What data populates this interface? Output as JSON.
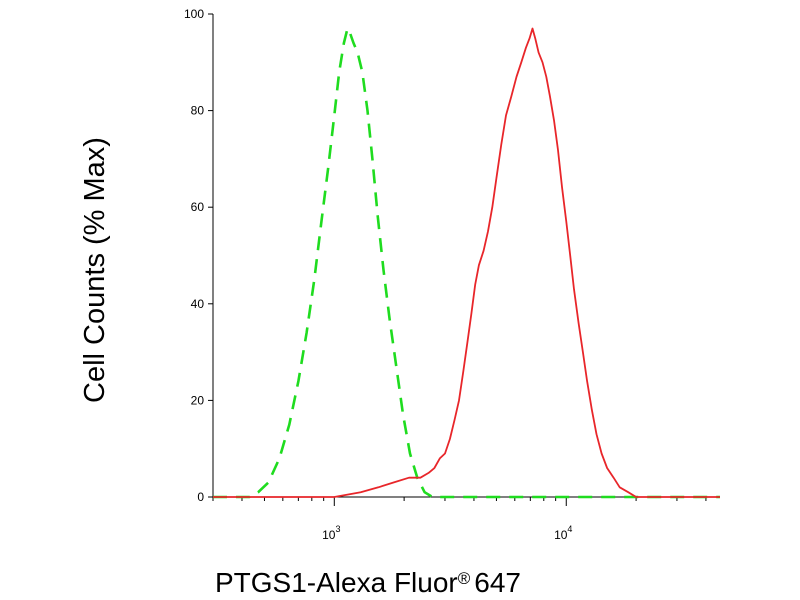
{
  "chart_data": {
    "type": "area",
    "title": "",
    "xlabel": "PTGS1-Alexa Fluor",
    "xlabel_superscript": "®",
    "xlabel_suffix": "647",
    "ylabel": "Cell Counts (% Max)",
    "x_scale": "log",
    "xlim": [
      300,
      46000
    ],
    "ylim": [
      0,
      100
    ],
    "x_ticks": [
      {
        "value": 1000,
        "base": "10",
        "exp": "3"
      },
      {
        "value": 10000,
        "base": "10",
        "exp": "4"
      }
    ],
    "y_ticks": [
      0,
      20,
      40,
      60,
      80,
      100
    ],
    "grid": false,
    "legend": "none",
    "series": [
      {
        "color": "#1fdc1f",
        "line_style": "dashed",
        "x": [
          300,
          380,
          430,
          470,
          520,
          580,
          640,
          700,
          760,
          820,
          880,
          940,
          1000,
          1050,
          1100,
          1140,
          1170,
          1210,
          1260,
          1320,
          1390,
          1460,
          1540,
          1630,
          1730,
          1850,
          1980,
          2120,
          2280,
          2450,
          2650,
          3000,
          5000,
          10000,
          20000,
          46000
        ],
        "y": [
          0,
          0,
          0,
          1,
          3,
          8,
          15,
          24,
          34,
          45,
          57,
          68,
          79,
          88,
          94,
          97,
          96,
          94,
          92,
          88,
          80,
          70,
          58,
          47,
          37,
          27,
          17,
          9,
          4,
          1,
          0,
          0,
          0,
          0,
          0,
          0
        ]
      },
      {
        "color": "#e8262a",
        "line_style": "solid",
        "x": [
          300,
          1000,
          1300,
          1550,
          1800,
          2100,
          2350,
          2550,
          2700,
          2850,
          3000,
          3150,
          3300,
          3450,
          3600,
          3750,
          3900,
          4050,
          4200,
          4400,
          4600,
          4800,
          5000,
          5250,
          5500,
          5800,
          6100,
          6400,
          6700,
          6950,
          7150,
          7350,
          7600,
          7900,
          8200,
          8500,
          8850,
          9200,
          9600,
          10000,
          10400,
          10800,
          11300,
          11800,
          12300,
          12900,
          13500,
          14200,
          15000,
          16000,
          17000,
          18500,
          20000,
          22000,
          25000,
          30000,
          46000
        ],
        "y": [
          0,
          0,
          1,
          2,
          3,
          4,
          4,
          5,
          6,
          8,
          9,
          12,
          16,
          20,
          26,
          32,
          38,
          44,
          48,
          51,
          55,
          60,
          66,
          73,
          79,
          83,
          87,
          90,
          93,
          95,
          97,
          95,
          92,
          90,
          87,
          83,
          78,
          72,
          64,
          57,
          50,
          43,
          36,
          30,
          24,
          18,
          13,
          9,
          6,
          4,
          2,
          1,
          0,
          0,
          0,
          0,
          0
        ]
      }
    ]
  }
}
